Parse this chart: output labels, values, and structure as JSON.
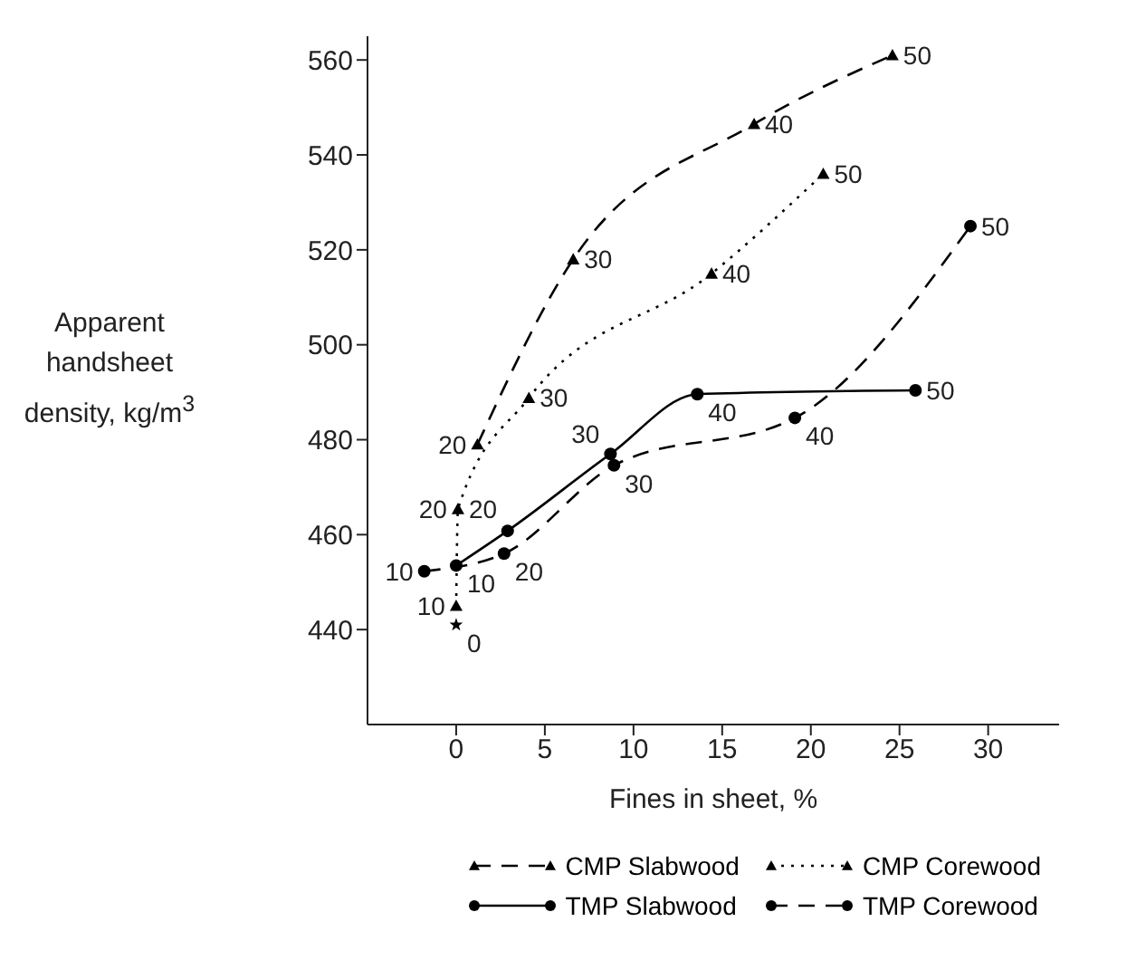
{
  "chart_data": {
    "type": "line",
    "xlabel": "Fines in sheet, %",
    "ylabel": "Apparent handsheet density, kg/m$^{3}$",
    "xlim": [
      -5,
      34
    ],
    "xticks": [
      0,
      5,
      10,
      15,
      20,
      25,
      30
    ],
    "ylim": [
      420,
      565
    ],
    "yticks": [
      440,
      460,
      480,
      500,
      520,
      540,
      560
    ],
    "legend": "bottom",
    "series": [
      {
        "name": "CMP Slabwood",
        "color": "#000000",
        "line_style": "dashed",
        "marker": "triangle",
        "x": [
          1.2,
          6.6,
          16.8,
          24.6
        ],
        "values": [
          479,
          518,
          546.5,
          561
        ]
      },
      {
        "name": "CMP Corewood",
        "color": "#000000",
        "line_style": "dotted",
        "marker": "triangle",
        "x": [
          0,
          0.1,
          4.1,
          14.4,
          20.7
        ],
        "values": [
          445,
          465.4,
          488.8,
          515,
          536
        ]
      },
      {
        "name": "TMP Slabwood",
        "color": "#000000",
        "line_style": "solid",
        "marker": "circle",
        "x": [
          0,
          2.9,
          8.7,
          13.6,
          25.9
        ],
        "values": [
          453.5,
          460.8,
          477,
          489.6,
          490.4
        ]
      },
      {
        "name": "TMP Corewood",
        "color": "#000000",
        "line_style": "dashed",
        "marker": "circle",
        "x": [
          -1.8,
          2.7,
          8.9,
          19.1,
          29
        ],
        "values": [
          452.3,
          456,
          474.6,
          484.6,
          525
        ]
      },
      {
        "type": "scatter",
        "color": "#000000",
        "marker": "star",
        "x": [
          0
        ],
        "values": [
          441
        ]
      }
    ],
    "annotations": [
      {
        "text": "0",
        "x": 0,
        "y": 441
      },
      {
        "text": "20",
        "x": 1.2,
        "y": 479
      },
      {
        "text": "30",
        "x": 6.6,
        "y": 518
      },
      {
        "text": "40",
        "x": 16.8,
        "y": 546.5
      },
      {
        "text": "50",
        "x": 24.6,
        "y": 561
      },
      {
        "text": "10",
        "x": 0,
        "y": 445
      },
      {
        "text": "20",
        "x": 0.1,
        "y": 465.4
      },
      {
        "text": "20",
        "x": 0.1,
        "y": 465.4
      },
      {
        "text": "30",
        "x": 4.1,
        "y": 488.8
      },
      {
        "text": "40",
        "x": 14.4,
        "y": 515
      },
      {
        "text": "50",
        "x": 20.7,
        "y": 536
      },
      {
        "text": "10",
        "x": 0,
        "y": 453.5
      },
      {
        "text": "30",
        "x": 8.7,
        "y": 477
      },
      {
        "text": "40",
        "x": 13.6,
        "y": 489.6
      },
      {
        "text": "50",
        "x": 25.9,
        "y": 490.4
      },
      {
        "text": "10",
        "x": -1.8,
        "y": 452.3
      },
      {
        "text": "20",
        "x": 2.7,
        "y": 456
      },
      {
        "text": "30",
        "x": 8.9,
        "y": 474.6
      },
      {
        "text": "40",
        "x": 19.1,
        "y": 484.6
      },
      {
        "text": "50",
        "x": 29,
        "y": 525
      }
    ]
  }
}
